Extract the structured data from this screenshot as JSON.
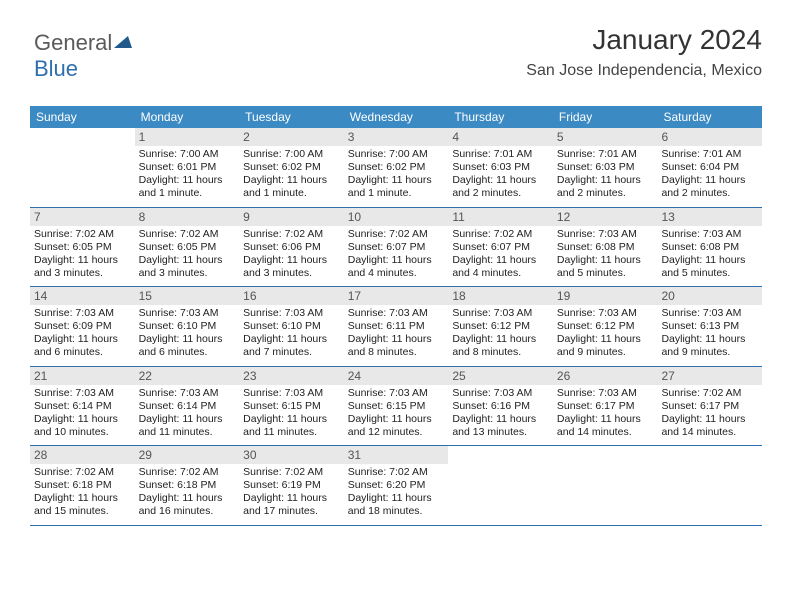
{
  "logo": {
    "part1": "General",
    "part2": "Blue"
  },
  "header": {
    "month": "January 2024",
    "location": "San Jose Independencia, Mexico"
  },
  "colors": {
    "header_bg": "#3b8ac4",
    "week_divider": "#2f6fae",
    "daynum_bg": "#e8e8e8",
    "text": "#222222",
    "logo_gray": "#5a5a5a",
    "logo_blue": "#2f6fae",
    "triangle": "#1f5a8a"
  },
  "daysOfWeek": [
    "Sunday",
    "Monday",
    "Tuesday",
    "Wednesday",
    "Thursday",
    "Friday",
    "Saturday"
  ],
  "weeks": [
    [
      null,
      {
        "n": "1",
        "sr": "Sunrise: 7:00 AM",
        "ss": "Sunset: 6:01 PM",
        "d1": "Daylight: 11 hours",
        "d2": "and 1 minute."
      },
      {
        "n": "2",
        "sr": "Sunrise: 7:00 AM",
        "ss": "Sunset: 6:02 PM",
        "d1": "Daylight: 11 hours",
        "d2": "and 1 minute."
      },
      {
        "n": "3",
        "sr": "Sunrise: 7:00 AM",
        "ss": "Sunset: 6:02 PM",
        "d1": "Daylight: 11 hours",
        "d2": "and 1 minute."
      },
      {
        "n": "4",
        "sr": "Sunrise: 7:01 AM",
        "ss": "Sunset: 6:03 PM",
        "d1": "Daylight: 11 hours",
        "d2": "and 2 minutes."
      },
      {
        "n": "5",
        "sr": "Sunrise: 7:01 AM",
        "ss": "Sunset: 6:03 PM",
        "d1": "Daylight: 11 hours",
        "d2": "and 2 minutes."
      },
      {
        "n": "6",
        "sr": "Sunrise: 7:01 AM",
        "ss": "Sunset: 6:04 PM",
        "d1": "Daylight: 11 hours",
        "d2": "and 2 minutes."
      }
    ],
    [
      {
        "n": "7",
        "sr": "Sunrise: 7:02 AM",
        "ss": "Sunset: 6:05 PM",
        "d1": "Daylight: 11 hours",
        "d2": "and 3 minutes."
      },
      {
        "n": "8",
        "sr": "Sunrise: 7:02 AM",
        "ss": "Sunset: 6:05 PM",
        "d1": "Daylight: 11 hours",
        "d2": "and 3 minutes."
      },
      {
        "n": "9",
        "sr": "Sunrise: 7:02 AM",
        "ss": "Sunset: 6:06 PM",
        "d1": "Daylight: 11 hours",
        "d2": "and 3 minutes."
      },
      {
        "n": "10",
        "sr": "Sunrise: 7:02 AM",
        "ss": "Sunset: 6:07 PM",
        "d1": "Daylight: 11 hours",
        "d2": "and 4 minutes."
      },
      {
        "n": "11",
        "sr": "Sunrise: 7:02 AM",
        "ss": "Sunset: 6:07 PM",
        "d1": "Daylight: 11 hours",
        "d2": "and 4 minutes."
      },
      {
        "n": "12",
        "sr": "Sunrise: 7:03 AM",
        "ss": "Sunset: 6:08 PM",
        "d1": "Daylight: 11 hours",
        "d2": "and 5 minutes."
      },
      {
        "n": "13",
        "sr": "Sunrise: 7:03 AM",
        "ss": "Sunset: 6:08 PM",
        "d1": "Daylight: 11 hours",
        "d2": "and 5 minutes."
      }
    ],
    [
      {
        "n": "14",
        "sr": "Sunrise: 7:03 AM",
        "ss": "Sunset: 6:09 PM",
        "d1": "Daylight: 11 hours",
        "d2": "and 6 minutes."
      },
      {
        "n": "15",
        "sr": "Sunrise: 7:03 AM",
        "ss": "Sunset: 6:10 PM",
        "d1": "Daylight: 11 hours",
        "d2": "and 6 minutes."
      },
      {
        "n": "16",
        "sr": "Sunrise: 7:03 AM",
        "ss": "Sunset: 6:10 PM",
        "d1": "Daylight: 11 hours",
        "d2": "and 7 minutes."
      },
      {
        "n": "17",
        "sr": "Sunrise: 7:03 AM",
        "ss": "Sunset: 6:11 PM",
        "d1": "Daylight: 11 hours",
        "d2": "and 8 minutes."
      },
      {
        "n": "18",
        "sr": "Sunrise: 7:03 AM",
        "ss": "Sunset: 6:12 PM",
        "d1": "Daylight: 11 hours",
        "d2": "and 8 minutes."
      },
      {
        "n": "19",
        "sr": "Sunrise: 7:03 AM",
        "ss": "Sunset: 6:12 PM",
        "d1": "Daylight: 11 hours",
        "d2": "and 9 minutes."
      },
      {
        "n": "20",
        "sr": "Sunrise: 7:03 AM",
        "ss": "Sunset: 6:13 PM",
        "d1": "Daylight: 11 hours",
        "d2": "and 9 minutes."
      }
    ],
    [
      {
        "n": "21",
        "sr": "Sunrise: 7:03 AM",
        "ss": "Sunset: 6:14 PM",
        "d1": "Daylight: 11 hours",
        "d2": "and 10 minutes."
      },
      {
        "n": "22",
        "sr": "Sunrise: 7:03 AM",
        "ss": "Sunset: 6:14 PM",
        "d1": "Daylight: 11 hours",
        "d2": "and 11 minutes."
      },
      {
        "n": "23",
        "sr": "Sunrise: 7:03 AM",
        "ss": "Sunset: 6:15 PM",
        "d1": "Daylight: 11 hours",
        "d2": "and 11 minutes."
      },
      {
        "n": "24",
        "sr": "Sunrise: 7:03 AM",
        "ss": "Sunset: 6:15 PM",
        "d1": "Daylight: 11 hours",
        "d2": "and 12 minutes."
      },
      {
        "n": "25",
        "sr": "Sunrise: 7:03 AM",
        "ss": "Sunset: 6:16 PM",
        "d1": "Daylight: 11 hours",
        "d2": "and 13 minutes."
      },
      {
        "n": "26",
        "sr": "Sunrise: 7:03 AM",
        "ss": "Sunset: 6:17 PM",
        "d1": "Daylight: 11 hours",
        "d2": "and 14 minutes."
      },
      {
        "n": "27",
        "sr": "Sunrise: 7:02 AM",
        "ss": "Sunset: 6:17 PM",
        "d1": "Daylight: 11 hours",
        "d2": "and 14 minutes."
      }
    ],
    [
      {
        "n": "28",
        "sr": "Sunrise: 7:02 AM",
        "ss": "Sunset: 6:18 PM",
        "d1": "Daylight: 11 hours",
        "d2": "and 15 minutes."
      },
      {
        "n": "29",
        "sr": "Sunrise: 7:02 AM",
        "ss": "Sunset: 6:18 PM",
        "d1": "Daylight: 11 hours",
        "d2": "and 16 minutes."
      },
      {
        "n": "30",
        "sr": "Sunrise: 7:02 AM",
        "ss": "Sunset: 6:19 PM",
        "d1": "Daylight: 11 hours",
        "d2": "and 17 minutes."
      },
      {
        "n": "31",
        "sr": "Sunrise: 7:02 AM",
        "ss": "Sunset: 6:20 PM",
        "d1": "Daylight: 11 hours",
        "d2": "and 18 minutes."
      },
      null,
      null,
      null
    ]
  ]
}
